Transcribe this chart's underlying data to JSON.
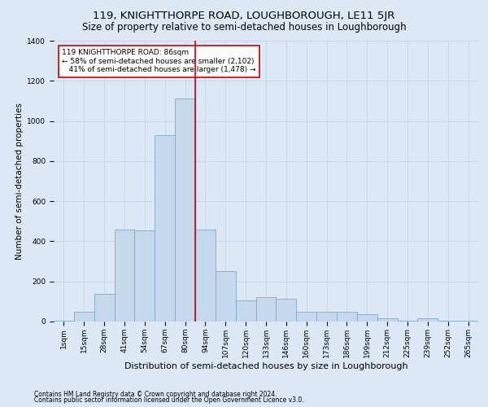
{
  "title": "119, KNIGHTTHORPE ROAD, LOUGHBOROUGH, LE11 5JR",
  "subtitle": "Size of property relative to semi-detached houses in Loughborough",
  "xlabel": "Distribution of semi-detached houses by size in Loughborough",
  "ylabel": "Number of semi-detached properties",
  "footnote1": "Contains HM Land Registry data © Crown copyright and database right 2024.",
  "footnote2": "Contains public sector information licensed under the Open Government Licence v3.0.",
  "bin_labels": [
    "1sqm",
    "15sqm",
    "28sqm",
    "41sqm",
    "54sqm",
    "67sqm",
    "80sqm",
    "94sqm",
    "107sqm",
    "120sqm",
    "133sqm",
    "146sqm",
    "160sqm",
    "173sqm",
    "186sqm",
    "199sqm",
    "212sqm",
    "225sqm",
    "239sqm",
    "252sqm",
    "265sqm"
  ],
  "bar_heights": [
    5,
    50,
    140,
    460,
    455,
    930,
    1110,
    460,
    250,
    105,
    120,
    115,
    50,
    50,
    48,
    35,
    18,
    5,
    18,
    5,
    3
  ],
  "bar_color": "#c5d8ee",
  "bar_edge_color": "#7aabcc",
  "red_line_color": "#cc0000",
  "annotation_text": "119 KNIGHTTHORPE ROAD: 86sqm\n← 58% of semi-detached houses are smaller (2,102)\n   41% of semi-detached houses are larger (1,478) →",
  "annotation_box_color": "#ffffff",
  "annotation_box_edge": "#cc0000",
  "property_bin_index": 6,
  "ylim": [
    0,
    1400
  ],
  "yticks": [
    0,
    200,
    400,
    600,
    800,
    1000,
    1200,
    1400
  ],
  "grid_color": "#c8d8e8",
  "background_color": "#dce8f5",
  "title_fontsize": 9.5,
  "subtitle_fontsize": 8.5,
  "ylabel_fontsize": 7.5,
  "xlabel_fontsize": 8,
  "tick_fontsize": 6.5,
  "annot_fontsize": 6.5,
  "footnote_fontsize": 5.5
}
